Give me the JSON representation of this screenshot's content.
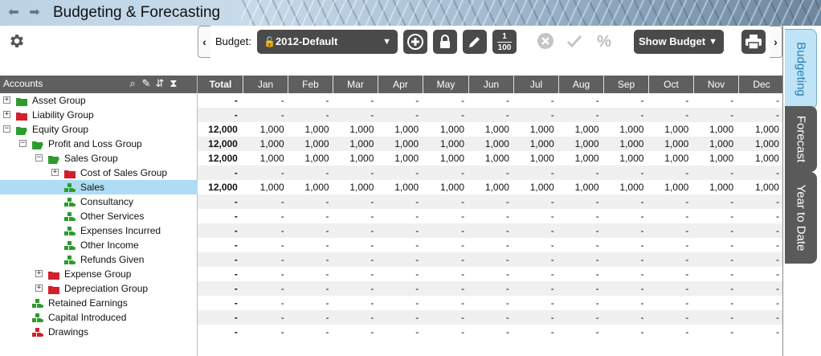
{
  "window": {
    "title": "Budgeting & Forecasting"
  },
  "toolbar": {
    "budget_label": "Budget:",
    "budget_value": "2012-Default",
    "fraction_top": "1",
    "fraction_bottom": "100",
    "percent": "%",
    "show_budget_label": "Show Budget"
  },
  "header": {
    "accounts_label": "Accounts",
    "columns": [
      "Total",
      "Jan",
      "Feb",
      "Mar",
      "Apr",
      "May",
      "Jun",
      "Jul",
      "Aug",
      "Sep",
      "Oct",
      "Nov",
      "Dec"
    ]
  },
  "tree": [
    {
      "label": "Asset Group",
      "level": 0,
      "expander": "+",
      "icon": "folder-green"
    },
    {
      "label": "Liability Group",
      "level": 0,
      "expander": "+",
      "icon": "folder-red"
    },
    {
      "label": "Equity Group",
      "level": 0,
      "expander": "-",
      "icon": "folder-green-open"
    },
    {
      "label": "Profit and Loss Group",
      "level": 1,
      "expander": "-",
      "icon": "folder-green-open"
    },
    {
      "label": "Sales Group",
      "level": 2,
      "expander": "-",
      "icon": "folder-green-open"
    },
    {
      "label": "Cost of Sales Group",
      "level": 3,
      "expander": "+",
      "icon": "folder-red"
    },
    {
      "label": "Sales",
      "level": 3,
      "expander": "",
      "icon": "account-green",
      "selected": true
    },
    {
      "label": "Consultancy",
      "level": 3,
      "expander": "",
      "icon": "account-green"
    },
    {
      "label": "Other Services",
      "level": 3,
      "expander": "",
      "icon": "account-green"
    },
    {
      "label": "Expenses Incurred",
      "level": 3,
      "expander": "",
      "icon": "account-green"
    },
    {
      "label": "Other Income",
      "level": 3,
      "expander": "",
      "icon": "account-green"
    },
    {
      "label": "Refunds Given",
      "level": 3,
      "expander": "",
      "icon": "account-green"
    },
    {
      "label": "Expense Group",
      "level": 2,
      "expander": "+",
      "icon": "folder-red"
    },
    {
      "label": "Depreciation Group",
      "level": 2,
      "expander": "+",
      "icon": "folder-red"
    },
    {
      "label": "Retained Earnings",
      "level": 1,
      "expander": "",
      "icon": "account-green"
    },
    {
      "label": "Capital Introduced",
      "level": 1,
      "expander": "",
      "icon": "account-green"
    },
    {
      "label": "Drawings",
      "level": 1,
      "expander": "",
      "icon": "account-red"
    }
  ],
  "grid_rows": [
    [
      "-",
      "-",
      "-",
      "-",
      "-",
      "-",
      "-",
      "-",
      "-",
      "-",
      "-",
      "-",
      "-"
    ],
    [
      "-",
      "-",
      "-",
      "-",
      "-",
      "-",
      "-",
      "-",
      "-",
      "-",
      "-",
      "-",
      "-"
    ],
    [
      "12,000",
      "1,000",
      "1,000",
      "1,000",
      "1,000",
      "1,000",
      "1,000",
      "1,000",
      "1,000",
      "1,000",
      "1,000",
      "1,000",
      "1,000"
    ],
    [
      "12,000",
      "1,000",
      "1,000",
      "1,000",
      "1,000",
      "1,000",
      "1,000",
      "1,000",
      "1,000",
      "1,000",
      "1,000",
      "1,000",
      "1,000"
    ],
    [
      "12,000",
      "1,000",
      "1,000",
      "1,000",
      "1,000",
      "1,000",
      "1,000",
      "1,000",
      "1,000",
      "1,000",
      "1,000",
      "1,000",
      "1,000"
    ],
    [
      "-",
      "-",
      "-",
      "-",
      "-",
      "-",
      "-",
      "-",
      "-",
      "-",
      "-",
      "-",
      "-"
    ],
    [
      "12,000",
      "1,000",
      "1,000",
      "1,000",
      "1,000",
      "1,000",
      "1,000",
      "1,000",
      "1,000",
      "1,000",
      "1,000",
      "1,000",
      "1,000"
    ],
    [
      "-",
      "-",
      "-",
      "-",
      "-",
      "-",
      "-",
      "-",
      "-",
      "-",
      "-",
      "-",
      "-"
    ],
    [
      "-",
      "-",
      "-",
      "-",
      "-",
      "-",
      "-",
      "-",
      "-",
      "-",
      "-",
      "-",
      "-"
    ],
    [
      "-",
      "-",
      "-",
      "-",
      "-",
      "-",
      "-",
      "-",
      "-",
      "-",
      "-",
      "-",
      "-"
    ],
    [
      "-",
      "-",
      "-",
      "-",
      "-",
      "-",
      "-",
      "-",
      "-",
      "-",
      "-",
      "-",
      "-"
    ],
    [
      "-",
      "-",
      "-",
      "-",
      "-",
      "-",
      "-",
      "-",
      "-",
      "-",
      "-",
      "-",
      "-"
    ],
    [
      "-",
      "-",
      "-",
      "-",
      "-",
      "-",
      "-",
      "-",
      "-",
      "-",
      "-",
      "-",
      "-"
    ],
    [
      "-",
      "-",
      "-",
      "-",
      "-",
      "-",
      "-",
      "-",
      "-",
      "-",
      "-",
      "-",
      "-"
    ],
    [
      "-",
      "-",
      "-",
      "-",
      "-",
      "-",
      "-",
      "-",
      "-",
      "-",
      "-",
      "-",
      "-"
    ],
    [
      "-",
      "-",
      "-",
      "-",
      "-",
      "-",
      "-",
      "-",
      "-",
      "-",
      "-",
      "-",
      "-"
    ],
    [
      "-",
      "-",
      "-",
      "-",
      "-",
      "-",
      "-",
      "-",
      "-",
      "-",
      "-",
      "-",
      "-"
    ]
  ],
  "side_tabs": [
    "Budgeting",
    "Forecast",
    "Year to Date"
  ],
  "colors": {
    "header_bg": "#5f5f5f",
    "selected_row": "#aedcf5",
    "folder_green": "#2e9a2e",
    "folder_red": "#d0202a",
    "button_dark": "#4a4a4a",
    "tab_active": "#bfe4f7"
  }
}
